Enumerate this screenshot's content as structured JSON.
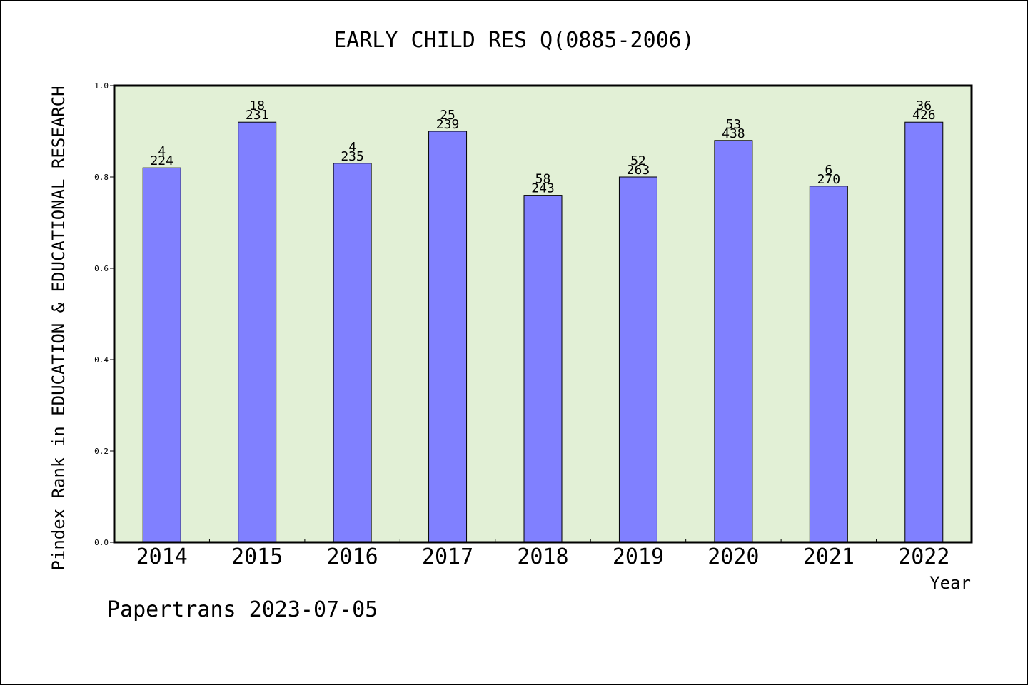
{
  "chart_data": {
    "type": "bar",
    "title": "EARLY CHILD RES Q(0885-2006)",
    "ylabel": "Pindex Rank in EDUCATION & EDUCATIONAL RESEARCH",
    "xlabel": "Year",
    "categories": [
      "2014",
      "2015",
      "2016",
      "2017",
      "2018",
      "2019",
      "2020",
      "2021",
      "2022"
    ],
    "values": [
      0.82,
      0.92,
      0.83,
      0.9,
      0.76,
      0.8,
      0.88,
      0.78,
      0.92
    ],
    "rank_labels": [
      "4",
      "18",
      "4",
      "25",
      "58",
      "52",
      "53",
      "6",
      "36"
    ],
    "total_labels": [
      "224",
      "231",
      "235",
      "239",
      "243",
      "263",
      "438",
      "270",
      "426"
    ],
    "ylim": [
      0,
      1.0
    ],
    "yticks": [
      "0.0",
      "0.2",
      "0.4",
      "0.6",
      "0.8",
      "1.0"
    ],
    "grid": false,
    "colors": {
      "bar": "#8080ff",
      "plot_bg": "#e2f0d6",
      "axis": "#000000"
    }
  },
  "footer": {
    "credit": "Papertrans 2023-07-05"
  }
}
